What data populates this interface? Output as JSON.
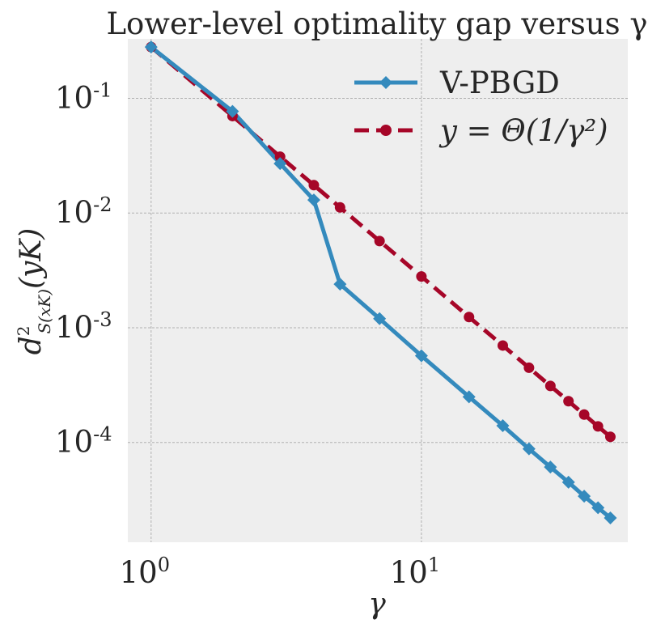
{
  "chart_data": {
    "type": "line",
    "title": "Lower-level optimality gap versus γ",
    "xlabel": "γ",
    "ylabel": {
      "base": "d",
      "sup": "2",
      "sub": "S(xK)",
      "arg": "(yK)"
    },
    "xscale": "log",
    "yscale": "log",
    "xlim": [
      0.82,
      58
    ],
    "ylim": [
      1.35e-05,
      0.33
    ],
    "grid": true,
    "legend_position": "top-right",
    "xticks": [
      {
        "value": 1,
        "base": "10",
        "exp": "0"
      },
      {
        "value": 10,
        "base": "10",
        "exp": "1"
      }
    ],
    "yticks": [
      {
        "value": 0.1,
        "base": "10",
        "exp": "-1"
      },
      {
        "value": 0.01,
        "base": "10",
        "exp": "-2"
      },
      {
        "value": 0.001,
        "base": "10",
        "exp": "-3"
      },
      {
        "value": 0.0001,
        "base": "10",
        "exp": "-4"
      }
    ],
    "series": [
      {
        "name": "V-PBGD",
        "color": "#348abd",
        "line_style": "solid",
        "marker": "diamond",
        "x": [
          1,
          2,
          3,
          4,
          5,
          7,
          10,
          15,
          20,
          25,
          30,
          35,
          40,
          45,
          50
        ],
        "y": [
          0.28,
          0.077,
          0.027,
          0.013,
          0.0024,
          0.0012,
          0.00057,
          0.00025,
          0.00014,
          8.8e-05,
          6.1e-05,
          4.5e-05,
          3.4e-05,
          2.7e-05,
          2.2e-05
        ]
      },
      {
        "name": "y = Θ(1/γ²)",
        "color": "#a60628",
        "line_style": "dashed",
        "marker": "circle",
        "x": [
          1,
          2,
          3,
          4,
          5,
          7,
          10,
          15,
          20,
          25,
          30,
          35,
          40,
          45,
          50
        ],
        "y": [
          0.28,
          0.07,
          0.031,
          0.0175,
          0.0112,
          0.0057,
          0.0028,
          0.00124,
          0.0007,
          0.000448,
          0.000311,
          0.000229,
          0.000175,
          0.000138,
          0.000112
        ]
      }
    ]
  }
}
